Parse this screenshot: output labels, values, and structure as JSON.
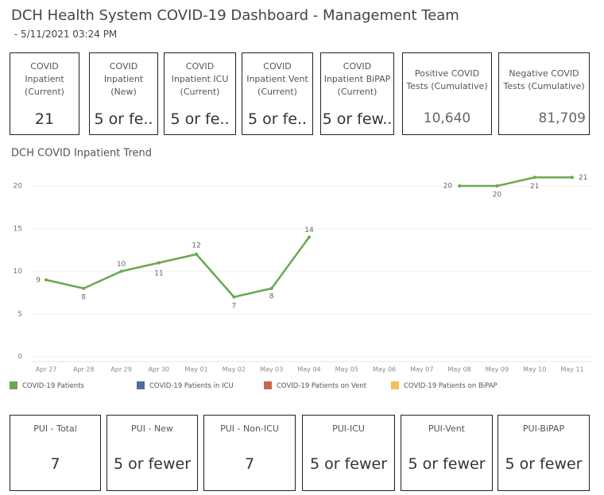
{
  "header": {
    "title": "DCH Health System COVID-19 Dashboard - Management Team",
    "subtitle": " - 5/11/2021 03:24 PM"
  },
  "kpis": [
    {
      "label_lines": [
        "COVID",
        "Inpatient",
        "(Current)"
      ],
      "value": "21"
    },
    {
      "label_lines": [
        "COVID",
        "Inpatient",
        "(New)"
      ],
      "value": "5 or fe.."
    },
    {
      "label_lines": [
        "COVID",
        "Inpatient ICU",
        "(Current)"
      ],
      "value": "5 or fe.."
    },
    {
      "label_lines": [
        "COVID",
        "Inpatient Vent",
        "(Current)"
      ],
      "value": "5 or fe.."
    },
    {
      "label_lines": [
        "COVID",
        "Inpatient BiPAP",
        "(Current)"
      ],
      "value": "5 or few.."
    },
    {
      "label_lines": [
        "Positive COVID",
        "Tests (Cumulative)"
      ],
      "value": "10,640"
    },
    {
      "label_lines": [
        "Negative COVID",
        "Tests (Cumulative)"
      ],
      "value": "81,709"
    }
  ],
  "pui": [
    {
      "label": "PUI - Total",
      "value": "7"
    },
    {
      "label": "PUI - New",
      "value": "5 or fewer"
    },
    {
      "label": "PUI - Non-ICU",
      "value": "7"
    },
    {
      "label": "PUI-ICU",
      "value": "5 or fewer"
    },
    {
      "label": "PUI-Vent",
      "value": "5 or fewer"
    },
    {
      "label": "PUI-BiPAP",
      "value": "5 or fewer"
    }
  ],
  "chart_data": {
    "type": "line",
    "title": "DCH COVID Inpatient Trend",
    "categories": [
      "Apr 27",
      "Apr 28",
      "Apr 29",
      "Apr 30",
      "May 01",
      "May 02",
      "May 03",
      "May 04",
      "May 05",
      "May 06",
      "May 07",
      "May 08",
      "May 09",
      "May 10",
      "May 11"
    ],
    "series": [
      {
        "name": "COVID-19 Patients",
        "color": "#6aa84f",
        "values": [
          9,
          8,
          10,
          11,
          12,
          7,
          8,
          14,
          null,
          null,
          null,
          20,
          20,
          21,
          21
        ]
      },
      {
        "name": "COVID-19 Patients in ICU",
        "color": "#4e6d9a",
        "values": [
          null,
          null,
          null,
          null,
          null,
          null,
          null,
          null,
          null,
          null,
          null,
          null,
          null,
          null,
          null
        ]
      },
      {
        "name": "COVID-19 Patients on Vent",
        "color": "#c8674f",
        "values": [
          null,
          null,
          null,
          null,
          null,
          null,
          null,
          null,
          null,
          null,
          null,
          null,
          null,
          null,
          null
        ]
      },
      {
        "name": "COVID-19 Patients on BiPAP",
        "color": "#f0c05a",
        "values": [
          null,
          null,
          null,
          null,
          null,
          null,
          null,
          null,
          null,
          null,
          null,
          null,
          null,
          null,
          null
        ]
      }
    ],
    "ylim": [
      0,
      22.7
    ],
    "yticks": [
      0,
      5,
      10,
      15,
      20
    ],
    "grid": true,
    "legend": "bottom"
  }
}
